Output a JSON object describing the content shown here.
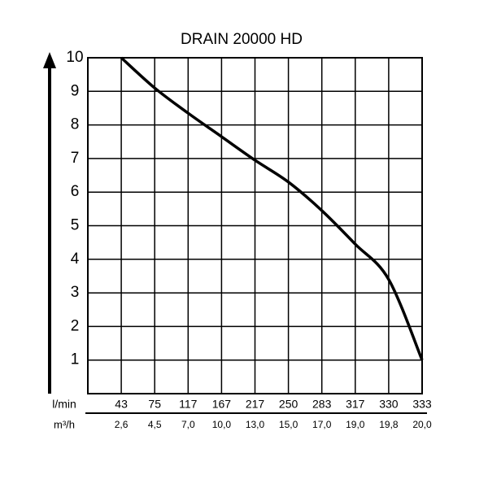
{
  "chart_data": {
    "type": "line",
    "title": "DRAIN 20000 HD",
    "x_label": "l/min",
    "x2_label": "m³/h",
    "categories": [
      "43",
      "75",
      "117",
      "167",
      "217",
      "250",
      "283",
      "317",
      "330",
      "333"
    ],
    "categories2": [
      "2,6",
      "4,5",
      "7,0",
      "10,0",
      "13,0",
      "15,0",
      "17,0",
      "19,0",
      "19,8",
      "20,0"
    ],
    "series": [
      {
        "color": "#000000",
        "values": [
          10,
          9.1,
          8.35,
          7.65,
          6.95,
          6.3,
          5.45,
          4.45,
          3.4,
          1
        ]
      }
    ],
    "ylim": [
      0,
      10
    ],
    "yticks": [
      1,
      2,
      3,
      4,
      5,
      6,
      7,
      8,
      9,
      10
    ],
    "grid": true
  }
}
